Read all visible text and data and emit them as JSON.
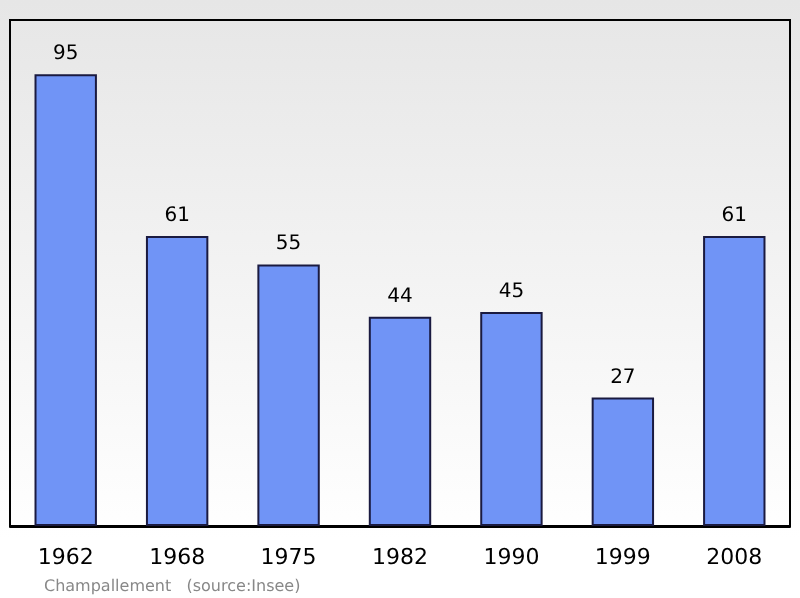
{
  "chart_data": {
    "type": "bar",
    "categories": [
      "1962",
      "1968",
      "1975",
      "1982",
      "1990",
      "1999",
      "2008"
    ],
    "values": [
      95,
      61,
      55,
      44,
      45,
      27,
      61
    ],
    "color": "#7094f6",
    "data_labels": true,
    "annotations": [
      "Champallement   (source:Insee)"
    ]
  }
}
